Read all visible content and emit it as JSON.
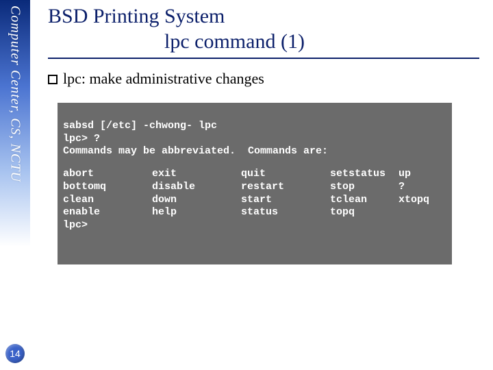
{
  "side_label": "Computer Center, CS, NCTU",
  "title_line1": "BSD Printing System",
  "title_line2": "lpc command (1)",
  "bullet": "lpc: make administrative changes",
  "terminal": {
    "line1": "sabsd [/etc] -chwong- lpc",
    "line2": "lpc> ?",
    "line3": "Commands may be abbreviated.  Commands are:",
    "columns": [
      [
        "abort",
        "bottomq",
        "clean",
        "enable",
        "lpc>"
      ],
      [
        "exit",
        "disable",
        "down",
        "help",
        ""
      ],
      [
        "quit",
        "restart",
        "start",
        "status",
        ""
      ],
      [
        "setstatus",
        "stop",
        "tclean",
        "topq",
        ""
      ],
      [
        "up",
        "?",
        "xtopq",
        "",
        ""
      ]
    ]
  },
  "page_number": "14",
  "colors": {
    "title": "#0b1f6a",
    "terminal_bg": "#6b6b6b",
    "terminal_fg": "#ffffff",
    "page_badge": "#3a62c8"
  }
}
